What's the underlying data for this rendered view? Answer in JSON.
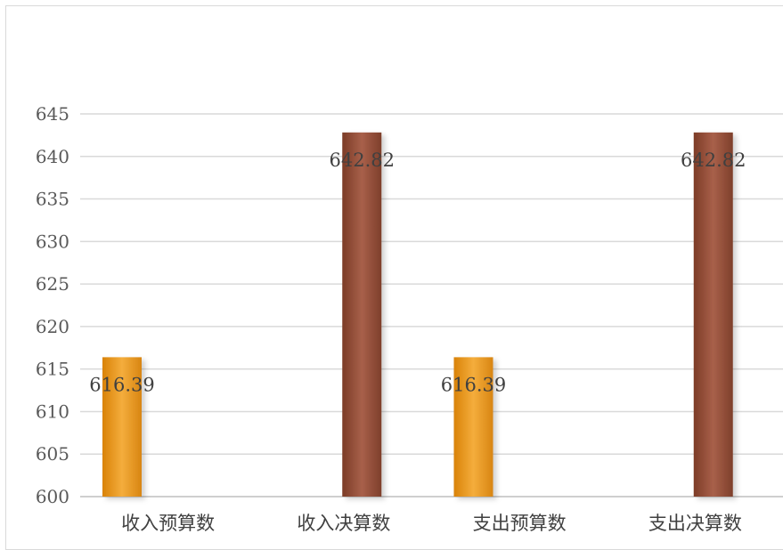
{
  "chart_data": {
    "type": "bar",
    "title": "",
    "xlabel": "",
    "ylabel": "",
    "categories": [
      "收入预算数",
      "收入决算数",
      "支出预算数",
      "支出决算数"
    ],
    "values": [
      616.39,
      642.82,
      616.39,
      642.82
    ],
    "data_labels": [
      "616.39",
      "642.82",
      "616.39",
      "642.82"
    ],
    "ylim": [
      600,
      645
    ],
    "yticks": [
      600,
      605,
      610,
      615,
      620,
      625,
      630,
      635,
      640,
      645
    ],
    "grid": true,
    "legend": "none",
    "colors": {
      "budget": "#e8921a",
      "budget_light": "#f5b043",
      "final": "#8e4a33",
      "final_light": "#a85e44",
      "grid": "#d9d9d9",
      "axis": "#bfbfbf"
    }
  }
}
